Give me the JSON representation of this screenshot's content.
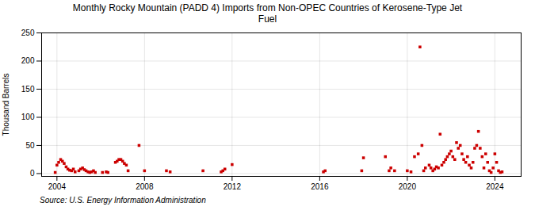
{
  "chart_data": {
    "type": "scatter",
    "title": "Monthly Rocky Mountain (PADD 4) Imports from Non-OPEC Countries of Kerosene-Type Jet\nFuel",
    "ylabel": "Thousand Barrels",
    "annotation": "Source: U.S. Energy Information Administration",
    "color": "#cc0000",
    "marker": "square",
    "grid": true,
    "xlim": [
      2003.3,
      2025.2
    ],
    "xticks": [
      2004,
      2008,
      2012,
      2016,
      2020,
      2024
    ],
    "ylim": [
      -5,
      250
    ],
    "yticks": [
      0,
      50,
      100,
      150,
      200,
      250
    ],
    "x": [
      2003.92,
      2004.0,
      2004.08,
      2004.17,
      2004.25,
      2004.33,
      2004.42,
      2004.5,
      2004.58,
      2004.67,
      2004.75,
      2004.83,
      2005.0,
      2005.08,
      2005.17,
      2005.25,
      2005.33,
      2005.42,
      2005.5,
      2005.58,
      2005.67,
      2005.75,
      2006.08,
      2006.25,
      2006.33,
      2006.67,
      2006.75,
      2006.83,
      2006.92,
      2007.0,
      2007.08,
      2007.17,
      2007.25,
      2007.75,
      2008.0,
      2009.0,
      2009.17,
      2010.67,
      2011.5,
      2011.58,
      2011.67,
      2012.0,
      2016.17,
      2016.25,
      2017.92,
      2018.0,
      2019.0,
      2019.17,
      2019.25,
      2019.42,
      2020.0,
      2020.17,
      2020.33,
      2020.5,
      2020.58,
      2020.67,
      2020.75,
      2020.83,
      2021.0,
      2021.08,
      2021.17,
      2021.25,
      2021.33,
      2021.42,
      2021.5,
      2021.58,
      2021.67,
      2021.75,
      2021.83,
      2021.92,
      2022.0,
      2022.08,
      2022.17,
      2022.25,
      2022.33,
      2022.42,
      2022.5,
      2022.58,
      2022.67,
      2022.75,
      2022.83,
      2022.92,
      2023.0,
      2023.08,
      2023.17,
      2023.25,
      2023.33,
      2023.42,
      2023.5,
      2023.58,
      2023.67,
      2023.75,
      2023.83,
      2023.92,
      2024.0,
      2024.08,
      2024.17,
      2024.25,
      2024.33
    ],
    "values": [
      2,
      15,
      20,
      25,
      22,
      18,
      12,
      8,
      6,
      5,
      8,
      3,
      5,
      8,
      10,
      7,
      5,
      3,
      2,
      3,
      5,
      2,
      2,
      3,
      2,
      20,
      22,
      25,
      25,
      22,
      18,
      15,
      5,
      50,
      5,
      5,
      3,
      5,
      3,
      5,
      8,
      16,
      3,
      5,
      5,
      28,
      30,
      5,
      10,
      5,
      5,
      3,
      30,
      35,
      225,
      50,
      5,
      10,
      15,
      10,
      5,
      8,
      12,
      10,
      70,
      15,
      20,
      25,
      30,
      35,
      40,
      30,
      25,
      55,
      45,
      50,
      35,
      25,
      20,
      30,
      15,
      10,
      20,
      45,
      50,
      75,
      45,
      30,
      10,
      35,
      20,
      5,
      2,
      10,
      35,
      20,
      5,
      2,
      3
    ]
  }
}
